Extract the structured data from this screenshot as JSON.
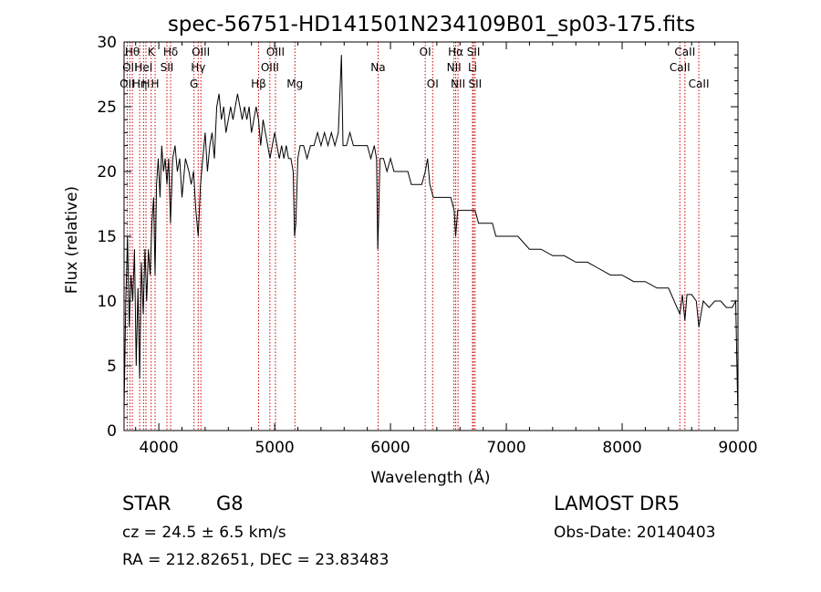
{
  "chart_data": {
    "type": "line",
    "title": "spec-56751-HD141501N234109B01_sp03-175.fits",
    "xlabel": "Wavelength (Å)",
    "ylabel": "Flux (relative)",
    "xlim": [
      3700,
      9000
    ],
    "ylim": [
      0,
      30
    ],
    "x_ticks": [
      4000,
      5000,
      6000,
      7000,
      8000,
      9000
    ],
    "x_tick_labels": [
      "4000",
      "5000",
      "6000",
      "7000",
      "8000",
      "9000"
    ],
    "y_ticks": [
      0,
      5,
      10,
      15,
      20,
      25,
      30
    ],
    "y_tick_labels": [
      "0",
      "5",
      "10",
      "15",
      "20",
      "25",
      "30"
    ],
    "grid": false,
    "series": [
      {
        "color": "#000000",
        "points": [
          [
            3700,
            1.5
          ],
          [
            3715,
            10
          ],
          [
            3730,
            15
          ],
          [
            3745,
            8
          ],
          [
            3760,
            12
          ],
          [
            3775,
            10
          ],
          [
            3790,
            14
          ],
          [
            3805,
            5
          ],
          [
            3820,
            11
          ],
          [
            3835,
            4
          ],
          [
            3850,
            13
          ],
          [
            3865,
            9
          ],
          [
            3880,
            14
          ],
          [
            3895,
            10
          ],
          [
            3910,
            14
          ],
          [
            3925,
            12
          ],
          [
            3940,
            16
          ],
          [
            3955,
            18
          ],
          [
            3968,
            12
          ],
          [
            3980,
            19
          ],
          [
            3995,
            21
          ],
          [
            4010,
            18
          ],
          [
            4025,
            22
          ],
          [
            4040,
            20
          ],
          [
            4055,
            21
          ],
          [
            4070,
            19
          ],
          [
            4085,
            21
          ],
          [
            4101,
            16
          ],
          [
            4120,
            21
          ],
          [
            4140,
            22
          ],
          [
            4160,
            20
          ],
          [
            4180,
            21
          ],
          [
            4200,
            18
          ],
          [
            4230,
            21
          ],
          [
            4260,
            20
          ],
          [
            4280,
            19
          ],
          [
            4300,
            20
          ],
          [
            4320,
            17
          ],
          [
            4340,
            15
          ],
          [
            4360,
            19
          ],
          [
            4380,
            21
          ],
          [
            4400,
            23
          ],
          [
            4420,
            20
          ],
          [
            4440,
            22
          ],
          [
            4460,
            23
          ],
          [
            4480,
            21
          ],
          [
            4500,
            25
          ],
          [
            4520,
            26
          ],
          [
            4540,
            24
          ],
          [
            4560,
            25
          ],
          [
            4580,
            23
          ],
          [
            4600,
            24
          ],
          [
            4620,
            25
          ],
          [
            4640,
            24
          ],
          [
            4660,
            25
          ],
          [
            4680,
            26
          ],
          [
            4700,
            25
          ],
          [
            4720,
            24
          ],
          [
            4740,
            25
          ],
          [
            4760,
            24
          ],
          [
            4780,
            25
          ],
          [
            4800,
            23
          ],
          [
            4820,
            24
          ],
          [
            4840,
            25
          ],
          [
            4861,
            24
          ],
          [
            4880,
            22
          ],
          [
            4900,
            24
          ],
          [
            4920,
            23
          ],
          [
            4940,
            22
          ],
          [
            4960,
            21
          ],
          [
            4980,
            22
          ],
          [
            5000,
            23
          ],
          [
            5020,
            22
          ],
          [
            5040,
            21
          ],
          [
            5060,
            22
          ],
          [
            5080,
            21
          ],
          [
            5100,
            22
          ],
          [
            5120,
            21
          ],
          [
            5140,
            21
          ],
          [
            5160,
            20
          ],
          [
            5172,
            15
          ],
          [
            5183,
            16
          ],
          [
            5200,
            21
          ],
          [
            5220,
            22
          ],
          [
            5250,
            22
          ],
          [
            5280,
            21
          ],
          [
            5310,
            22
          ],
          [
            5340,
            22
          ],
          [
            5370,
            23
          ],
          [
            5400,
            22
          ],
          [
            5430,
            23
          ],
          [
            5460,
            22
          ],
          [
            5490,
            23
          ],
          [
            5520,
            22
          ],
          [
            5550,
            23
          ],
          [
            5577,
            29
          ],
          [
            5590,
            22
          ],
          [
            5620,
            22
          ],
          [
            5650,
            23
          ],
          [
            5680,
            22
          ],
          [
            5710,
            22
          ],
          [
            5740,
            22
          ],
          [
            5770,
            22
          ],
          [
            5800,
            22
          ],
          [
            5830,
            21
          ],
          [
            5860,
            22
          ],
          [
            5880,
            21
          ],
          [
            5890,
            14
          ],
          [
            5896,
            16
          ],
          [
            5910,
            21
          ],
          [
            5940,
            21
          ],
          [
            5970,
            20
          ],
          [
            6000,
            21
          ],
          [
            6030,
            20
          ],
          [
            6060,
            20
          ],
          [
            6090,
            20
          ],
          [
            6120,
            20
          ],
          [
            6150,
            20
          ],
          [
            6180,
            19
          ],
          [
            6210,
            19
          ],
          [
            6240,
            19
          ],
          [
            6270,
            19
          ],
          [
            6300,
            20
          ],
          [
            6320,
            21
          ],
          [
            6340,
            19
          ],
          [
            6370,
            18
          ],
          [
            6400,
            18
          ],
          [
            6430,
            18
          ],
          [
            6460,
            18
          ],
          [
            6490,
            18
          ],
          [
            6520,
            18
          ],
          [
            6550,
            17
          ],
          [
            6563,
            15
          ],
          [
            6580,
            17
          ],
          [
            6610,
            17
          ],
          [
            6640,
            17
          ],
          [
            6670,
            17
          ],
          [
            6700,
            17
          ],
          [
            6730,
            17
          ],
          [
            6760,
            16
          ],
          [
            6790,
            16
          ],
          [
            6820,
            16
          ],
          [
            6850,
            16
          ],
          [
            6880,
            16
          ],
          [
            6910,
            15
          ],
          [
            6940,
            15
          ],
          [
            6970,
            15
          ],
          [
            7000,
            15
          ],
          [
            7100,
            15
          ],
          [
            7200,
            14
          ],
          [
            7300,
            14
          ],
          [
            7400,
            13.5
          ],
          [
            7500,
            13.5
          ],
          [
            7600,
            13
          ],
          [
            7700,
            13
          ],
          [
            7800,
            12.5
          ],
          [
            7900,
            12
          ],
          [
            8000,
            12
          ],
          [
            8100,
            11.5
          ],
          [
            8200,
            11.5
          ],
          [
            8300,
            11
          ],
          [
            8400,
            11
          ],
          [
            8498,
            9
          ],
          [
            8520,
            10.5
          ],
          [
            8542,
            8.5
          ],
          [
            8560,
            10.5
          ],
          [
            8600,
            10.5
          ],
          [
            8640,
            10
          ],
          [
            8662,
            8
          ],
          [
            8700,
            10
          ],
          [
            8750,
            9.5
          ],
          [
            8800,
            10
          ],
          [
            8850,
            10
          ],
          [
            8900,
            9.5
          ],
          [
            8950,
            9.5
          ],
          [
            8980,
            10
          ],
          [
            8995,
            3
          ],
          [
            9000,
            1
          ]
        ]
      }
    ],
    "lines": [
      {
        "x": 3727,
        "label": "OII",
        "row": 2
      },
      {
        "x": 3750,
        "label": "OII",
        "row": 1
      },
      {
        "x": 3771,
        "label": "Hθ",
        "row": 0
      },
      {
        "x": 3835,
        "label": "Hη",
        "row": 2
      },
      {
        "x": 3868,
        "label": "HeI",
        "row": 1
      },
      {
        "x": 3889,
        "label": "H",
        "row": 2
      },
      {
        "x": 3934,
        "label": "K",
        "row": 0
      },
      {
        "x": 3968,
        "label": "H",
        "row": 2
      },
      {
        "x": 4070,
        "label": "SII",
        "row": 1
      },
      {
        "x": 4102,
        "label": "Hδ",
        "row": 0
      },
      {
        "x": 4304,
        "label": "G",
        "row": 2
      },
      {
        "x": 4340,
        "label": "Hγ",
        "row": 1
      },
      {
        "x": 4363,
        "label": "OIII",
        "row": 0
      },
      {
        "x": 4861,
        "label": "Hβ",
        "row": 2
      },
      {
        "x": 4959,
        "label": "OIII",
        "row": 1
      },
      {
        "x": 5007,
        "label": "OIII",
        "row": 0
      },
      {
        "x": 5175,
        "label": "Mg",
        "row": 2
      },
      {
        "x": 5893,
        "label": "Na",
        "row": 1
      },
      {
        "x": 6300,
        "label": "OI",
        "row": 0
      },
      {
        "x": 6364,
        "label": "OI",
        "row": 2
      },
      {
        "x": 6548,
        "label": "NII",
        "row": 1
      },
      {
        "x": 6563,
        "label": "Hα",
        "row": 0
      },
      {
        "x": 6583,
        "label": "NII",
        "row": 2
      },
      {
        "x": 6708,
        "label": "Li",
        "row": 1
      },
      {
        "x": 6717,
        "label": "SII",
        "row": 0
      },
      {
        "x": 6731,
        "label": "SII",
        "row": 2
      },
      {
        "x": 8498,
        "label": "CaII",
        "row": 1
      },
      {
        "x": 8542,
        "label": "CaII",
        "row": 0
      },
      {
        "x": 8662,
        "label": "CaII",
        "row": 2
      }
    ]
  },
  "info": {
    "object_class": "STAR",
    "subclass": "G8",
    "survey": "LAMOST DR5",
    "redshift": "cz = 24.5 ± 6.5 km/s",
    "obs_date": "Obs-Date: 20140403",
    "coords": "RA = 212.82651, DEC =  23.83483"
  },
  "colors": {
    "spectrum": "#000000",
    "line_marker": "#cc0000",
    "background": "#ffffff"
  }
}
